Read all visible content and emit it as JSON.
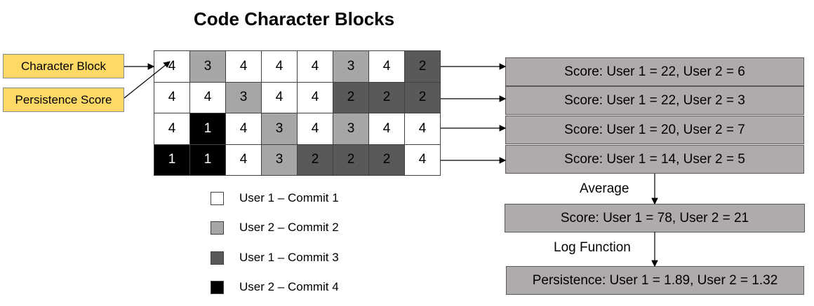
{
  "title": "Code Character Blocks",
  "callouts": [
    "Character Block",
    "Persistence Score"
  ],
  "grid": [
    [
      "4",
      "3",
      "4",
      "4",
      "4",
      "3",
      "4",
      "2"
    ],
    [
      "4",
      "4",
      "3",
      "4",
      "4",
      "2",
      "2",
      "2"
    ],
    [
      "4",
      "1",
      "4",
      "3",
      "4",
      "3",
      "4",
      "4"
    ],
    [
      "1",
      "1",
      "4",
      "3",
      "2",
      "2",
      "2",
      "4"
    ]
  ],
  "legend": [
    {
      "label": "User 1 – Commit 1",
      "color": "#ffffff"
    },
    {
      "label": "User 2 – Commit 2",
      "color": "#a6a6a6"
    },
    {
      "label": "User 1 – Commit 3",
      "color": "#595959"
    },
    {
      "label": "User 2 – Commit 4",
      "color": "#000000"
    }
  ],
  "row_scores": [
    "Score: User 1 = 22, User 2 = 6",
    "Score: User 1 = 22, User 2 = 3",
    "Score: User 1 = 20, User 2 = 7",
    "Score: User 1 = 14, User 2 = 5"
  ],
  "average_label": "Average",
  "average_score": "Score: User 1 = 78, User 2 = 21",
  "log_label": "Log Function",
  "persistence": "Persistence: User 1 = 1.89, User 2 = 1.32"
}
